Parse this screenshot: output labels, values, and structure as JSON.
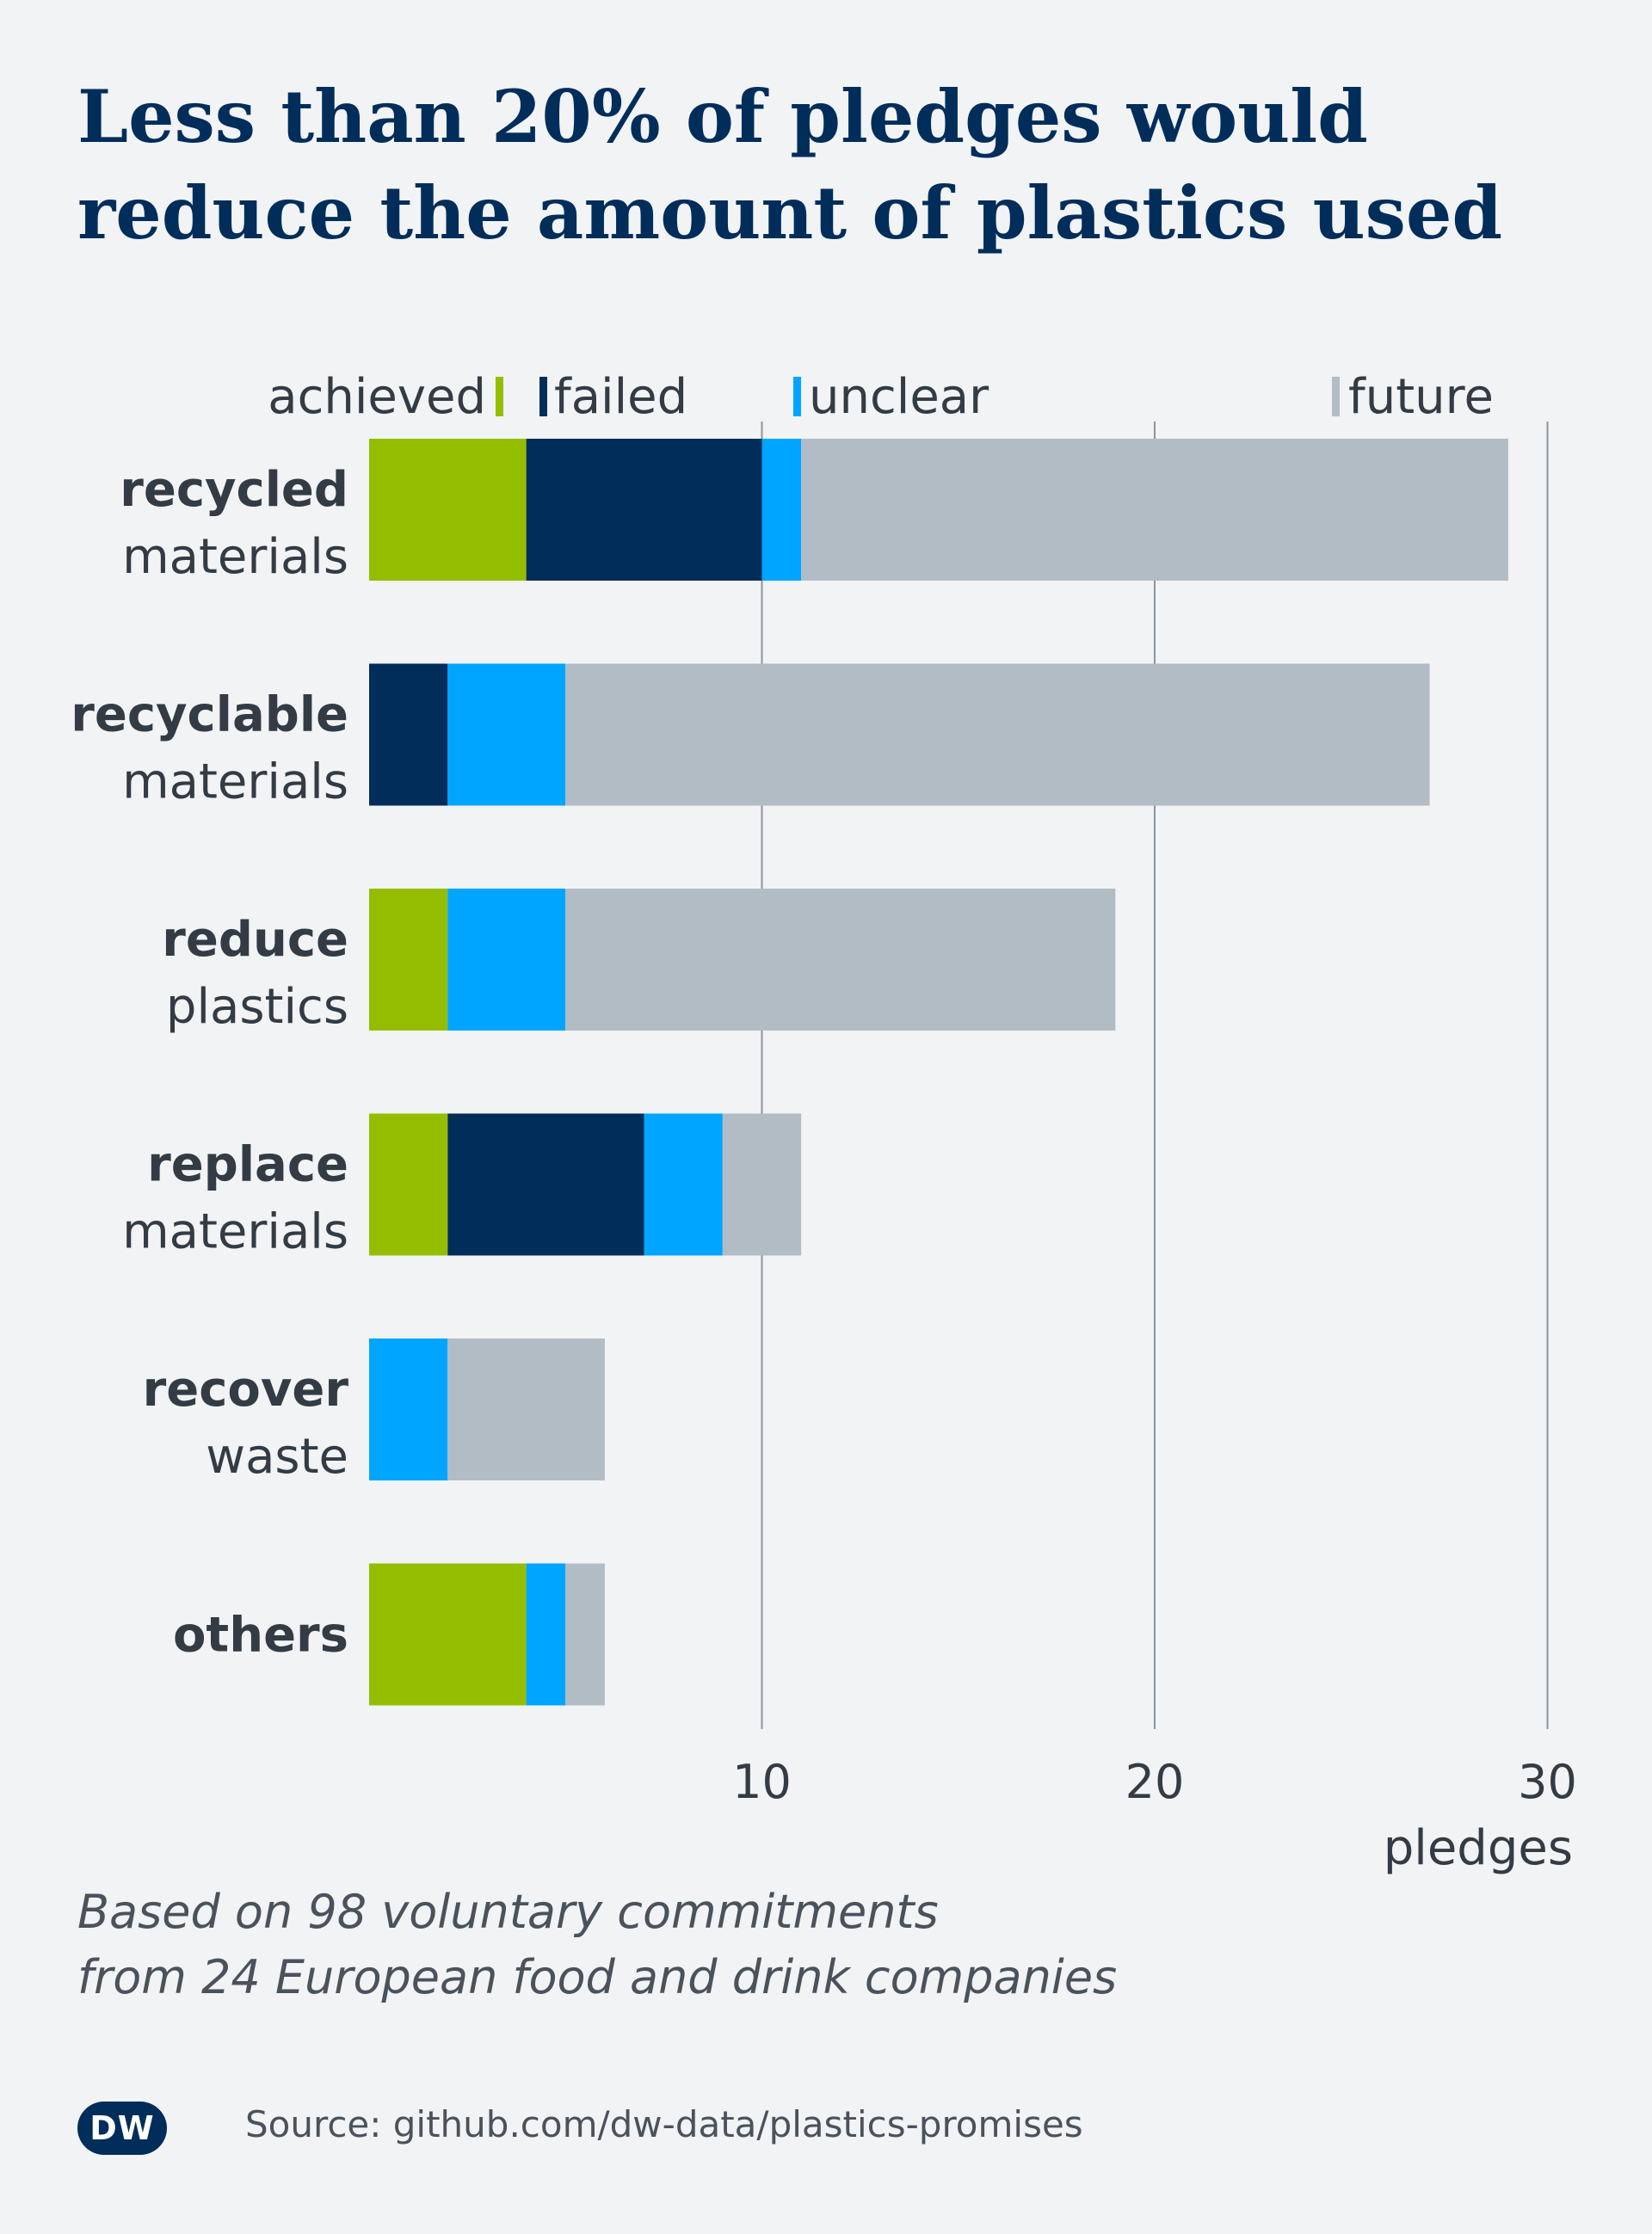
{
  "title_lines": [
    "Less than 20% of pledges would",
    "reduce the amount of plastics used"
  ],
  "note_lines": [
    "Based on 98 voluntary commitments",
    "from 24 European food and drink companies"
  ],
  "logo": "DW",
  "source": "Source: github.com/dw-data/plastics-promises",
  "colors": {
    "achieved": "#95bd00",
    "failed": "#002d5a",
    "unclear": "#00a5ff",
    "future": "#b2bcc4"
  },
  "chart_data": {
    "type": "bar",
    "orientation": "horizontal",
    "stacked": true,
    "legend": [
      "achieved",
      "failed",
      "unclear",
      "future"
    ],
    "legend_placement": "top",
    "grid": true,
    "xlim": [
      0,
      30
    ],
    "xticks": [
      10,
      20,
      30
    ],
    "xlabel": "pledges",
    "categories": [
      {
        "bold": "recycled",
        "rest": "materials"
      },
      {
        "bold": "recyclable",
        "rest": "materials"
      },
      {
        "bold": "reduce",
        "rest": "plastics"
      },
      {
        "bold": "replace",
        "rest": "materials"
      },
      {
        "bold": "recover",
        "rest": "waste"
      },
      {
        "bold": "others",
        "rest": ""
      }
    ],
    "series": [
      {
        "name": "achieved",
        "values": [
          4,
          0,
          2,
          2,
          0,
          4
        ]
      },
      {
        "name": "failed",
        "values": [
          6,
          2,
          0,
          5,
          0,
          0
        ]
      },
      {
        "name": "unclear",
        "values": [
          1,
          3,
          3,
          2,
          2,
          1
        ]
      },
      {
        "name": "future",
        "values": [
          18,
          22,
          14,
          2,
          4,
          1
        ]
      }
    ]
  }
}
